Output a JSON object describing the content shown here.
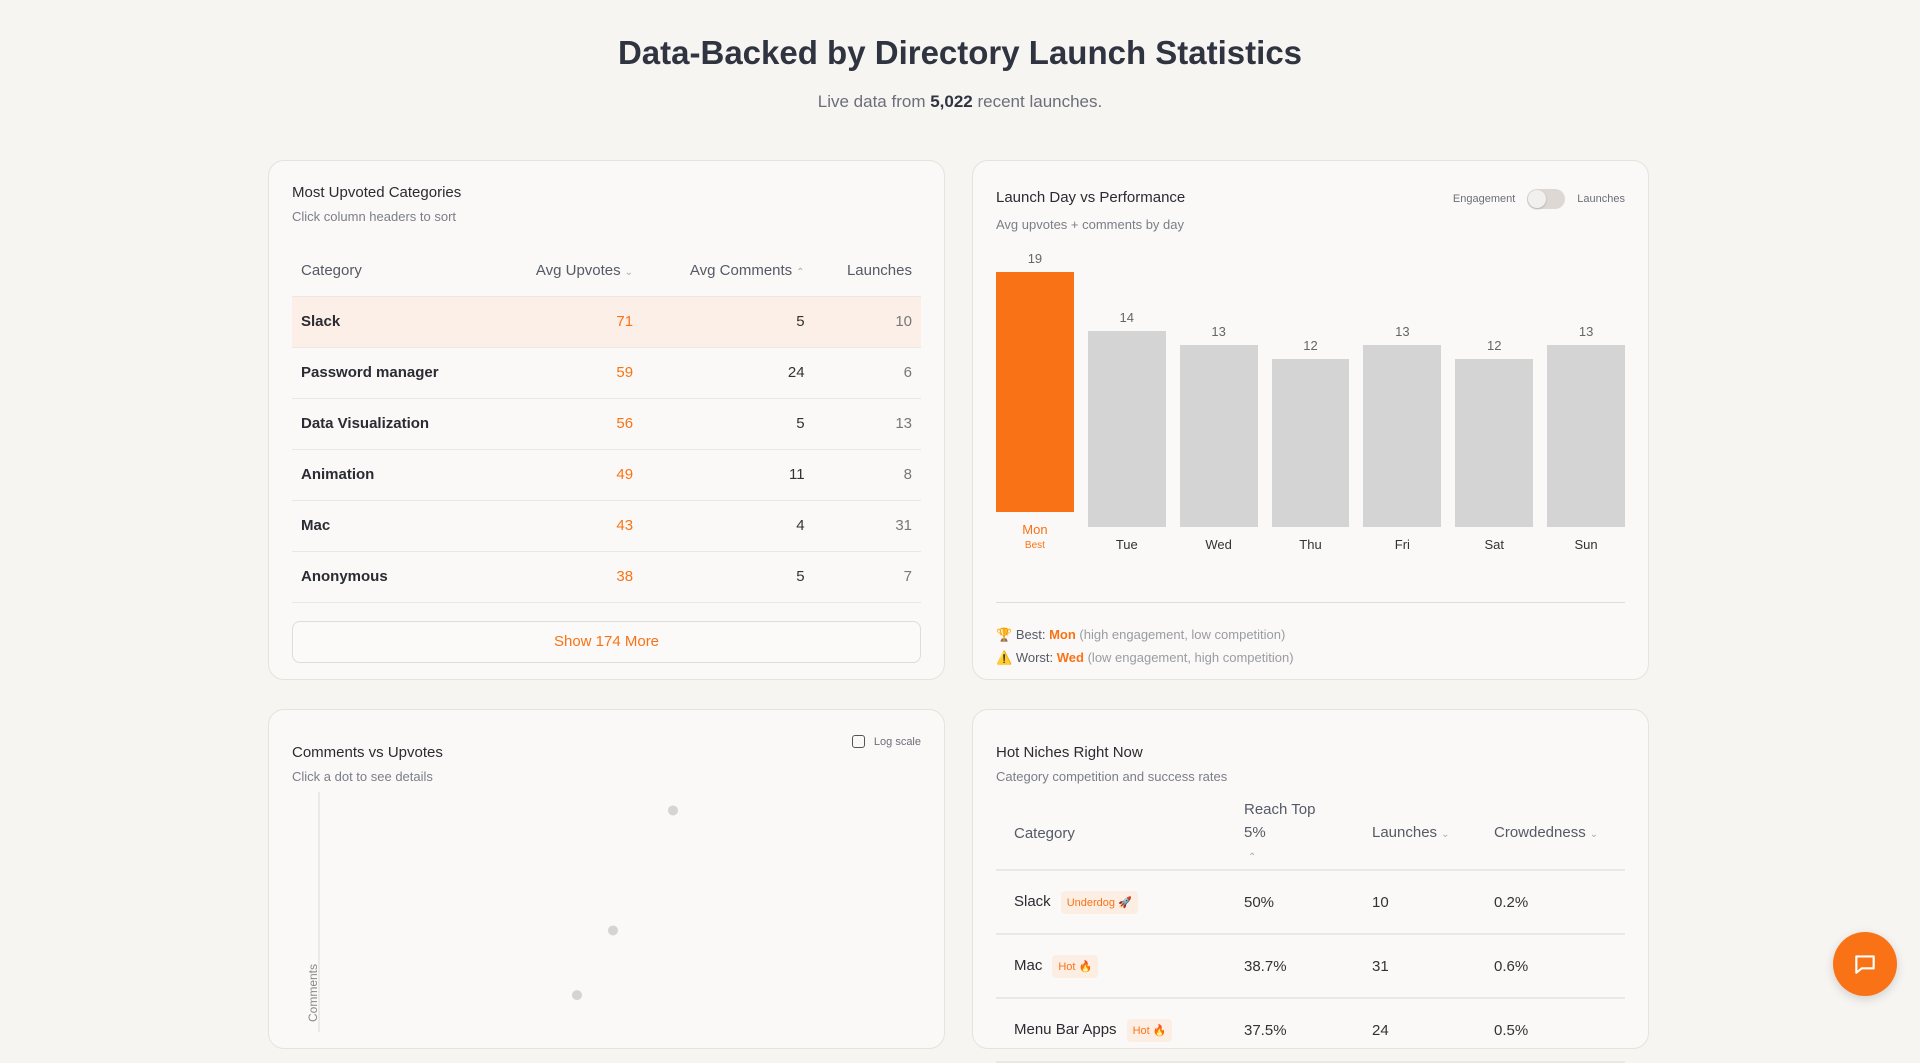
{
  "header": {
    "title": "Data-Backed by Directory Launch Statistics",
    "subtitle_pre": "Live data from ",
    "subtitle_count": "5,022",
    "subtitle_post": " recent launches."
  },
  "top_categories": {
    "title": "Most Upvoted Categories",
    "subtitle": "Click column headers to sort",
    "columns": [
      "Category",
      "Avg Upvotes",
      "Avg Comments",
      "Launches"
    ],
    "rows": [
      {
        "category": "Slack",
        "upvotes": "71",
        "comments": "5",
        "launches": "10"
      },
      {
        "category": "Password manager",
        "upvotes": "59",
        "comments": "24",
        "launches": "6"
      },
      {
        "category": "Data Visualization",
        "upvotes": "56",
        "comments": "5",
        "launches": "13"
      },
      {
        "category": "Animation",
        "upvotes": "49",
        "comments": "11",
        "launches": "8"
      },
      {
        "category": "Mac",
        "upvotes": "43",
        "comments": "4",
        "launches": "31"
      },
      {
        "category": "Anonymous",
        "upvotes": "38",
        "comments": "5",
        "launches": "7"
      }
    ],
    "show_more": "Show 174 More"
  },
  "launch_day": {
    "title": "Launch Day vs Performance",
    "subtitle": "Avg upvotes + comments by day",
    "toggle_left": "Engagement",
    "toggle_right": "Launches",
    "toggle_on": false,
    "best_tag": "Best",
    "best_label": "Best:",
    "best_day": "Mon",
    "best_note": " (high engagement, low competition)",
    "worst_label": "Worst:",
    "worst_day": "Wed",
    "worst_note": " (low engagement, high competition)"
  },
  "chart_data": [
    {
      "type": "bar",
      "categories": [
        "Mon",
        "Tue",
        "Wed",
        "Thu",
        "Fri",
        "Sat",
        "Sun"
      ],
      "values": [
        19,
        14,
        13,
        12,
        13,
        12,
        13
      ],
      "highlight": "Mon",
      "colors": {
        "highlight": "#f97316",
        "default": "#d4d4d4"
      }
    },
    {
      "type": "scatter",
      "title": "Comments vs Upvotes",
      "ylabel": "Comments",
      "log_scale": false,
      "points": [
        {
          "x": 59,
          "y": 24
        },
        {
          "x": 49,
          "y": 11
        },
        {
          "x": 43,
          "y": 4
        }
      ],
      "color": "#d4d4d4"
    }
  ],
  "scatter": {
    "title": "Comments vs Upvotes",
    "subtitle": "Click a dot to see details",
    "log_label": "Log scale",
    "ylabel": "Comments"
  },
  "niches": {
    "title": "Hot Niches Right Now",
    "subtitle": "Category competition and success rates",
    "columns": [
      "Category",
      "Reach Top 5%",
      "Launches",
      "Crowdedness"
    ],
    "rows": [
      {
        "category": "Slack",
        "badge": "Underdog 🚀",
        "reach": "50%",
        "launches": "10",
        "crowd": "0.2%"
      },
      {
        "category": "Mac",
        "badge": "Hot 🔥",
        "reach": "38.7%",
        "launches": "31",
        "crowd": "0.6%"
      },
      {
        "category": "Menu Bar Apps",
        "badge": "Hot 🔥",
        "reach": "37.5%",
        "launches": "24",
        "crowd": "0.5%"
      }
    ]
  },
  "accent": "#f97316"
}
